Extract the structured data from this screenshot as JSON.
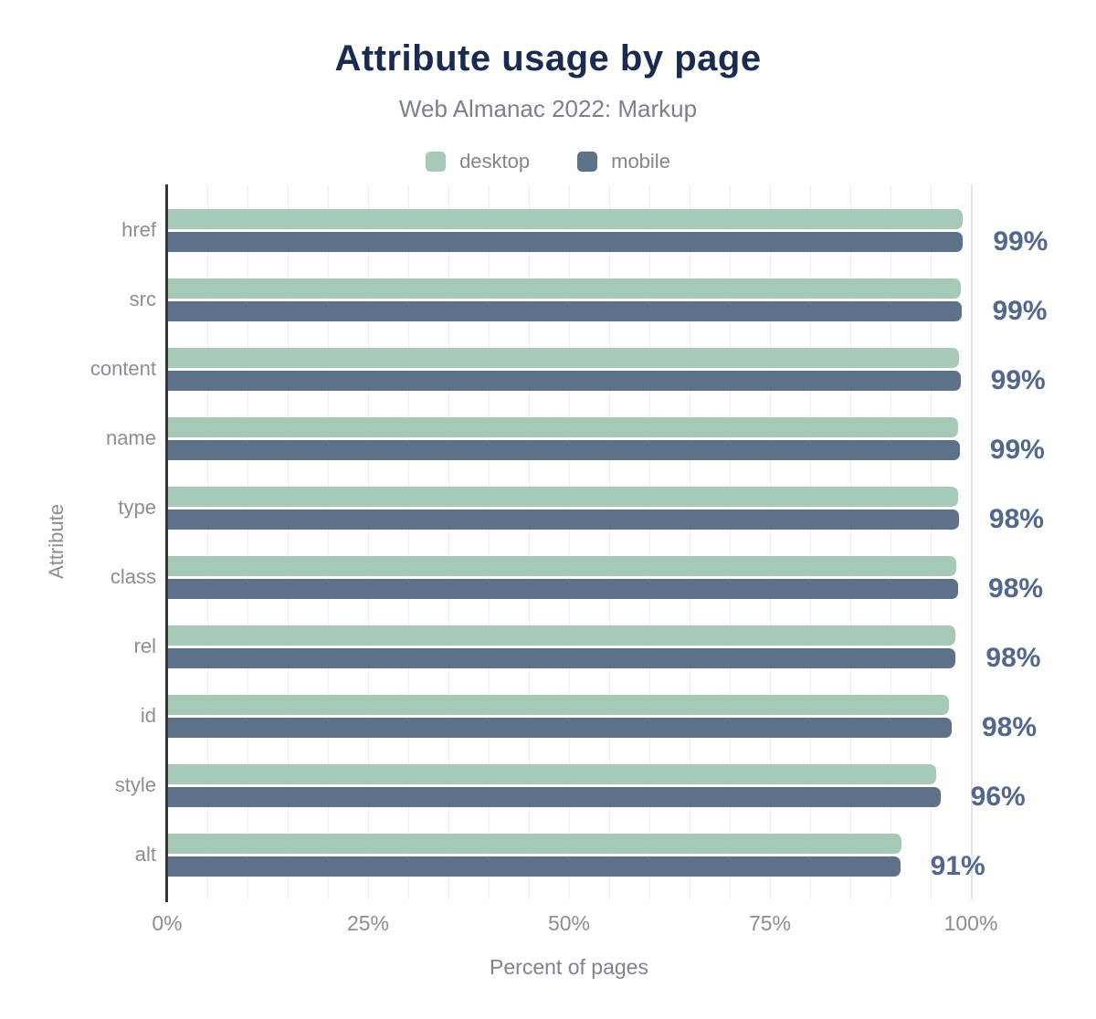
{
  "header": {
    "title": "Attribute usage by page",
    "subtitle": "Web Almanac 2022: Markup"
  },
  "legend": [
    {
      "label": "desktop",
      "color": "#a6cab7"
    },
    {
      "label": "mobile",
      "color": "#5d7189"
    }
  ],
  "colors": {
    "desktop_bar": "#a6cab7",
    "mobile_bar": "#5d7189",
    "title_text": "#1a2b4f",
    "subtitle_text": "#7b808a",
    "value_label_text": "#52678e",
    "axis_label_text": "#8b8e97",
    "gridline": "#efeff2",
    "axis_line": "#33363c"
  },
  "chart_data": {
    "type": "bar",
    "orientation": "horizontal",
    "title": "Attribute usage by page",
    "subtitle": "Web Almanac 2022: Markup",
    "xlabel": "Percent of pages",
    "ylabel": "Attribute",
    "xlim": [
      0,
      100
    ],
    "grid": "vertical minor gridlines every 5%",
    "legend_position": "top center",
    "categories": [
      "href",
      "src",
      "content",
      "name",
      "type",
      "class",
      "rel",
      "id",
      "style",
      "alt"
    ],
    "series": [
      {
        "name": "desktop",
        "color": "#a6cab7",
        "values": [
          98.9,
          98.6,
          98.4,
          98.3,
          98.3,
          98.1,
          97.9,
          97.2,
          95.6,
          91.3
        ]
      },
      {
        "name": "mobile",
        "color": "#5d7189",
        "values": [
          98.9,
          98.8,
          98.6,
          98.5,
          98.4,
          98.3,
          98.0,
          97.5,
          96.1,
          91.1
        ]
      }
    ],
    "value_labels": [
      "99%",
      "99%",
      "99%",
      "99%",
      "98%",
      "98%",
      "98%",
      "98%",
      "96%",
      "91%"
    ],
    "x_ticks": [
      {
        "value": 0,
        "label": "0%"
      },
      {
        "value": 25,
        "label": "25%"
      },
      {
        "value": 50,
        "label": "50%"
      },
      {
        "value": 75,
        "label": "75%"
      },
      {
        "value": 100,
        "label": "100%"
      }
    ]
  }
}
